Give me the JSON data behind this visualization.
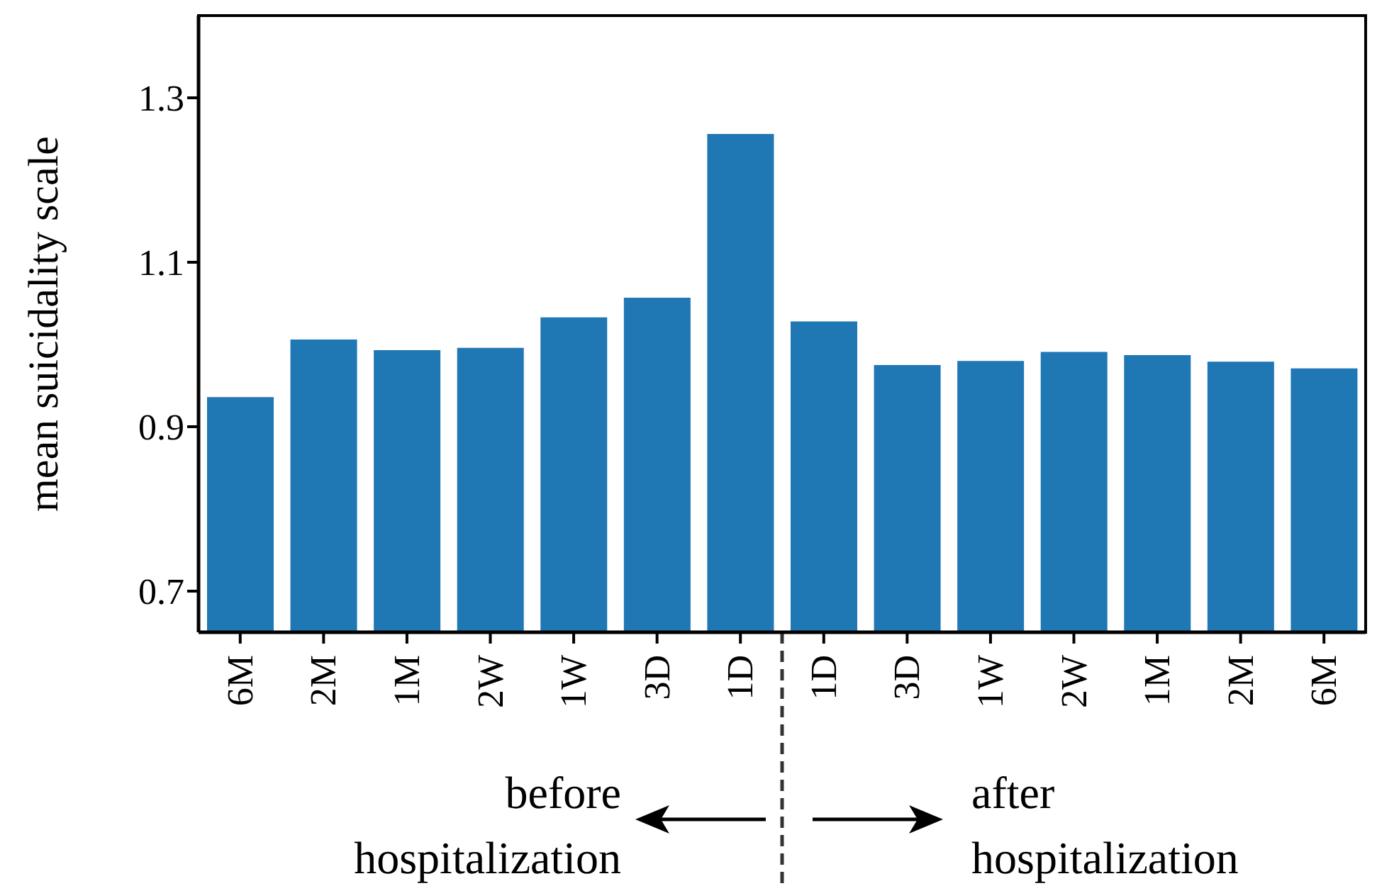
{
  "chart_data": {
    "type": "bar",
    "ylabel": "mean suicidality scale",
    "categories": [
      "6M",
      "2M",
      "1M",
      "2W",
      "1W",
      "3D",
      "1D",
      "1D",
      "3D",
      "1W",
      "2W",
      "1M",
      "2M",
      "6M"
    ],
    "values": [
      0.936,
      1.006,
      0.993,
      0.996,
      1.033,
      1.057,
      1.256,
      1.028,
      0.975,
      0.98,
      0.991,
      0.987,
      0.979,
      0.971
    ],
    "color": "#1f77b4",
    "ylim": [
      0.65,
      1.4
    ],
    "yticks": [
      0.7,
      0.9,
      1.1,
      1.3
    ],
    "annotations": [
      "before hospitalization",
      "after hospitalization"
    ]
  }
}
